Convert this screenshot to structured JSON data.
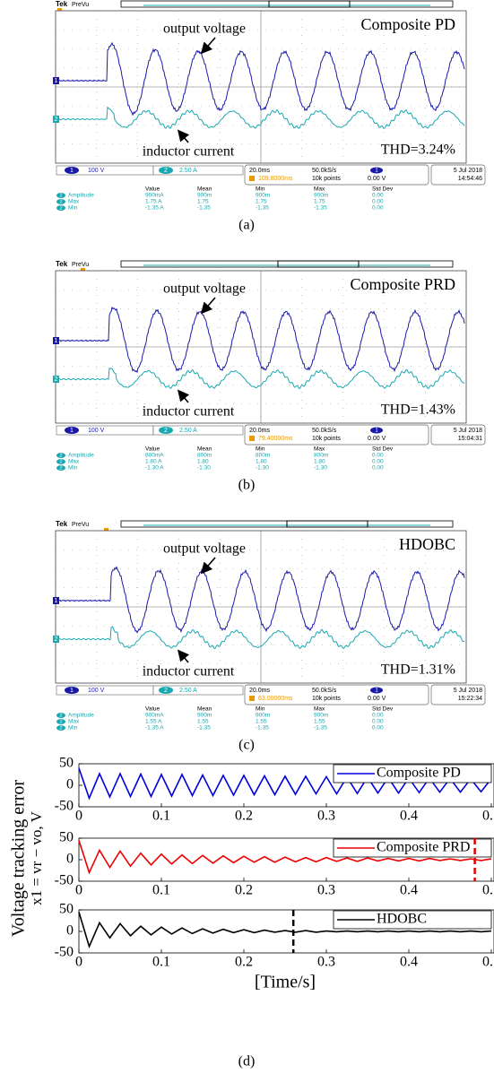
{
  "panels": [
    {
      "caption": "(a)",
      "tek": "Tek",
      "prevu": "PreVu",
      "title": "Composite PD",
      "thd": "THD=3.24%",
      "voltage_label": "output voltage",
      "current_label": "inductor current",
      "channels": [
        "1",
        "2"
      ],
      "ch1_scale": "100 V",
      "ch2_scale": "2.50 A",
      "timebase": "20.0ms",
      "sample_rate": "50.0kS/s",
      "trigger_position": "109.8000ms",
      "record_length": "10k points",
      "trigger_level": "0.00 V",
      "date": "5 Jul  2018",
      "time": "14:54:46",
      "measurements": {
        "headers": [
          "Value",
          "Mean",
          "Min",
          "Max",
          "Std Dev"
        ],
        "rows": [
          [
            "2",
            "Amplitude",
            "900mA",
            "900m",
            "900m",
            "900m",
            "0.00"
          ],
          [
            "2",
            "Max",
            "1.75 A",
            "1.75",
            "1.75",
            "1.75",
            "0.00"
          ],
          [
            "2",
            "Min",
            "-1.35 A",
            "-1.35",
            "-1.35",
            "-1.35",
            "0.00"
          ]
        ]
      }
    },
    {
      "caption": "(b)",
      "tek": "Tek",
      "prevu": "PreVu",
      "title": "Composite PRD",
      "thd": "THD=1.43%",
      "voltage_label": "output voltage",
      "current_label": "inductor current",
      "channels": [
        "1",
        "2"
      ],
      "ch1_scale": "100 V",
      "ch2_scale": "2.50 A",
      "timebase": "20.0ms",
      "sample_rate": "50.0kS/s",
      "trigger_position": "79.40000ms",
      "record_length": "10k points",
      "trigger_level": "0.00 V",
      "date": "5 Jul  2018",
      "time": "15:04:31",
      "measurements": {
        "headers": [
          "Value",
          "Mean",
          "Min",
          "Max",
          "Std Dev"
        ],
        "rows": [
          [
            "2",
            "Amplitude",
            "800mA",
            "800m",
            "800m",
            "800m",
            "0.00"
          ],
          [
            "2",
            "Max",
            "1.80 A",
            "1.80",
            "1.80",
            "1.80",
            "0.00"
          ],
          [
            "2",
            "Min",
            "-1.30 A",
            "-1.30",
            "-1.30",
            "-1.30",
            "0.00"
          ]
        ]
      }
    },
    {
      "caption": "(c)",
      "tek": "Tek",
      "prevu": "PreVu",
      "title": "HDOBC",
      "thd": "THD=1.31%",
      "voltage_label": "output voltage",
      "current_label": "inductor current",
      "channels": [
        "1",
        "2"
      ],
      "ch1_scale": "100 V",
      "ch2_scale": "2.50 A",
      "timebase": "20.0ms",
      "sample_rate": "50.0kS/s",
      "trigger_position": "63.00000ms",
      "record_length": "10k points",
      "trigger_level": "0.00 V",
      "date": "5 Jul  2018",
      "time": "15:22:34",
      "measurements": {
        "headers": [
          "Value",
          "Mean",
          "Min",
          "Max",
          "Std Dev"
        ],
        "rows": [
          [
            "2",
            "Amplitude",
            "900mA",
            "900m",
            "900m",
            "900m",
            "0.00"
          ],
          [
            "2",
            "Max",
            "1.55 A",
            "1.55",
            "1.55",
            "1.55",
            "0.00"
          ],
          [
            "2",
            "Min",
            "-1.35 A",
            "-1.35",
            "-1.35",
            "-1.35",
            "0.00"
          ]
        ]
      }
    }
  ],
  "caption_d": "(d)",
  "chart_data": [
    {
      "type": "line",
      "xlim": [
        0,
        0.5
      ],
      "ylim": [
        -50,
        50
      ],
      "yticks": [
        -50,
        0,
        50
      ],
      "xticks": [
        0,
        0.1,
        0.2,
        0.3,
        0.4,
        {
          "value": 0.5,
          "label": "0."
        }
      ],
      "x": [
        0,
        0.0125,
        0.025,
        0.0375,
        0.05,
        0.0625,
        0.075,
        0.0875,
        0.1,
        0.1125,
        0.125,
        0.1375,
        0.15,
        0.1625,
        0.175,
        0.1875,
        0.2,
        0.2125,
        0.225,
        0.2375,
        0.25,
        0.2625,
        0.275,
        0.2875,
        0.3,
        0.3125,
        0.325,
        0.3375,
        0.35,
        0.3625,
        0.375,
        0.3875,
        0.4,
        0.4125,
        0.425,
        0.4375,
        0.45,
        0.4625,
        0.475,
        0.4875,
        0.5
      ],
      "series": [
        {
          "name": "Composite PD",
          "color": "#0000dd",
          "values": [
            40,
            -30,
            27,
            -27,
            27,
            -26,
            26,
            -26,
            25,
            -25,
            25,
            -24,
            24,
            -24,
            23,
            -23,
            23,
            -22,
            22,
            -22,
            21,
            -21,
            21,
            -20,
            20,
            -20,
            19,
            -19,
            19,
            -18,
            18,
            -18,
            17,
            -17,
            17,
            -16,
            16,
            -16,
            15,
            -15,
            15
          ]
        }
      ]
    },
    {
      "type": "line",
      "xlim": [
        0,
        0.5
      ],
      "ylim": [
        -50,
        50
      ],
      "yticks": [
        -50,
        0,
        50
      ],
      "xticks": [
        0,
        0.1,
        0.2,
        0.3,
        0.4,
        {
          "value": 0.5,
          "label": "0."
        }
      ],
      "ylabel": [
        "Voltage tracking error",
        "x1 = vr − vo, V"
      ],
      "vline": 0.48,
      "vline_color": "#e00000",
      "x": [
        0,
        0.0125,
        0.025,
        0.0375,
        0.05,
        0.0625,
        0.075,
        0.0875,
        0.1,
        0.1125,
        0.125,
        0.1375,
        0.15,
        0.1625,
        0.175,
        0.1875,
        0.2,
        0.2125,
        0.225,
        0.2375,
        0.25,
        0.2625,
        0.275,
        0.2875,
        0.3,
        0.3125,
        0.325,
        0.3375,
        0.35,
        0.3625,
        0.375,
        0.3875,
        0.4,
        0.4125,
        0.425,
        0.4375,
        0.45,
        0.4625,
        0.475,
        0.4875,
        0.5
      ],
      "series": [
        {
          "name": "Composite PRD",
          "color": "#ee0000",
          "values": [
            45,
            -30,
            22,
            -18,
            20,
            -15,
            15,
            -12,
            13,
            -10,
            11,
            -9,
            10,
            -8,
            9,
            -7,
            8,
            -6,
            7,
            -6,
            6,
            -5,
            5,
            -5,
            5,
            -4,
            4,
            -4,
            4,
            -3,
            3,
            -3,
            3,
            -3,
            3,
            -2,
            2,
            -2,
            2,
            -2,
            2
          ]
        }
      ]
    },
    {
      "type": "line",
      "xlim": [
        0,
        0.5
      ],
      "ylim": [
        -50,
        50
      ],
      "yticks": [
        -50,
        0,
        50
      ],
      "xticks": [
        0,
        0.1,
        0.2,
        0.3,
        0.4,
        {
          "value": 0.5,
          "label": "0."
        }
      ],
      "xlabel": "[Time/s]",
      "vline": 0.26,
      "vline_color": "#000000",
      "x": [
        0,
        0.0125,
        0.025,
        0.0375,
        0.05,
        0.0625,
        0.075,
        0.0875,
        0.1,
        0.1125,
        0.125,
        0.1375,
        0.15,
        0.1625,
        0.175,
        0.1875,
        0.2,
        0.2125,
        0.225,
        0.2375,
        0.25,
        0.2625,
        0.275,
        0.2875,
        0.3,
        0.3125,
        0.325,
        0.3375,
        0.35,
        0.3625,
        0.375,
        0.3875,
        0.4,
        0.4125,
        0.425,
        0.4375,
        0.45,
        0.4625,
        0.475,
        0.4875,
        0.5
      ],
      "series": [
        {
          "name": "HDOBC",
          "color": "#000000",
          "values": [
            45,
            -35,
            20,
            -15,
            18,
            -10,
            12,
            -8,
            10,
            -6,
            8,
            -5,
            6,
            -4,
            5,
            -3,
            4,
            -3,
            3,
            -2,
            2,
            -2,
            2,
            -2,
            1,
            -1,
            1,
            -1,
            1,
            -1,
            1,
            -1,
            1,
            -1,
            1,
            -1,
            1,
            -1,
            1,
            -1,
            1
          ]
        }
      ]
    }
  ]
}
